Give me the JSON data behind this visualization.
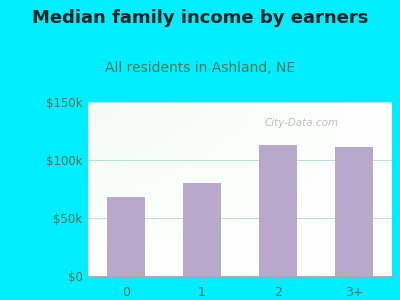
{
  "title": "Median family income by earners",
  "subtitle": "All residents in Ashland, NE",
  "categories": [
    "0",
    "1",
    "2",
    "3+"
  ],
  "values": [
    68000,
    80000,
    113000,
    111000
  ],
  "bar_color": "#b8a8cc",
  "yticks": [
    0,
    50000,
    100000,
    150000
  ],
  "ytick_labels": [
    "$0",
    "$50k",
    "$100k",
    "$150k"
  ],
  "ylim": [
    0,
    150000
  ],
  "title_fontsize": 13,
  "subtitle_fontsize": 10,
  "title_color": "#222222",
  "subtitle_color": "#557755",
  "tick_color": "#557755",
  "bg_outer": "#00eeff",
  "watermark": "City-Data.com"
}
